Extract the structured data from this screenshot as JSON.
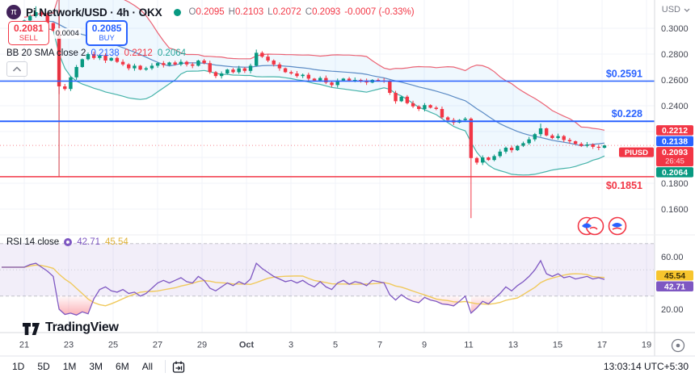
{
  "header": {
    "symbol_title": "Pi Network/USD · 4h · OKX",
    "ohlc": {
      "o_label": "O",
      "o": "0.2095",
      "h_label": "H",
      "h": "0.2103",
      "l_label": "L",
      "l": "0.2072",
      "c_label": "C",
      "c": "0.2093",
      "change": "-0.0007 (-0.33%)"
    }
  },
  "trade": {
    "sell_price": "0.2081",
    "sell_label": "SELL",
    "spread": "0.0004",
    "buy_price": "0.2085",
    "buy_label": "BUY"
  },
  "indicators": {
    "bb": {
      "label": "BB 20 SMA close 2",
      "basis": "0.2138",
      "upper": "0.2212",
      "lower": "0.2064"
    },
    "rsi": {
      "label": "RSI 14 close",
      "value": "42.71",
      "ma_value": "45.54"
    }
  },
  "price_axis": {
    "currency": "USD"
  },
  "watermark": {
    "text": "TradingView"
  },
  "toolbar": {
    "ranges": [
      "1D",
      "5D",
      "1M",
      "3M",
      "6M",
      "All"
    ]
  },
  "footer": {
    "clock": "13:03:14 UTC+5:30"
  },
  "chart_data": {
    "type": "candlestick_with_rsi",
    "symbol_tag": "PIUSD",
    "last_price": 0.2093,
    "bar_countdown": "26:45",
    "price_gridlines": [
      0.3,
      0.28,
      0.26,
      0.24,
      0.22,
      0.2,
      0.18,
      0.16
    ],
    "price_ticks": [
      {
        "label": "0.3000",
        "value": 0.3
      },
      {
        "label": "0.2800",
        "value": 0.28
      },
      {
        "label": "0.2600",
        "value": 0.26
      },
      {
        "label": "0.2400",
        "value": 0.24
      },
      {
        "label": "0.1800",
        "value": 0.18
      },
      {
        "label": "0.1600",
        "value": 0.16
      }
    ],
    "time_ticks": [
      "21",
      "23",
      "25",
      "27",
      "29",
      "Oct",
      "3",
      "5",
      "7",
      "9",
      "11",
      "13",
      "15",
      "17",
      "19"
    ],
    "bold_time_tick": "Oct",
    "rsi_ticks": [
      {
        "label": "60.00",
        "value": 60
      },
      {
        "label": "20.00",
        "value": 20
      }
    ],
    "rsi_levels": {
      "upper": 70,
      "middle": 50,
      "lower": 30
    },
    "rsi_badges": [
      {
        "label": "45.54",
        "value": 45.54,
        "bg": "#f7c52d",
        "fg": "#3d3108"
      },
      {
        "label": "42.71",
        "value": 42.71,
        "bg": "#7e57c2",
        "fg": "#ffffff"
      }
    ],
    "price_badges": [
      {
        "label": "0.2212",
        "value": 0.2212,
        "bg": "#f23645"
      },
      {
        "label": "0.2138",
        "value": 0.2138,
        "bg": "#2962ff"
      },
      {
        "label": "0.2093",
        "value": 0.2093,
        "bg": "#f23645",
        "tag": "PIUSD",
        "sub": "26:45"
      },
      {
        "label": "0.2064",
        "value": 0.2064,
        "bg": "#089981"
      }
    ],
    "levels": [
      {
        "label": "$0.2591",
        "price": 0.2591,
        "color": "#2962ff",
        "width": 1.5,
        "label_dy": -5
      },
      {
        "label": "$0.228",
        "price": 0.228,
        "color": "#2962ff",
        "width": 2,
        "label_dy": -5
      },
      {
        "label": "$0.1851",
        "price": 0.1851,
        "color": "#f23645",
        "width": 1.5,
        "label_dy": 15
      }
    ],
    "vertical_line_index": 6,
    "bb": {
      "window": 20,
      "mult": 2
    },
    "rsi_ma_window": 9,
    "candles": {
      "warmup_closes": [
        0.298,
        0.3,
        0.302,
        0.299,
        0.301,
        0.303,
        0.3,
        0.302,
        0.305,
        0.303,
        0.306,
        0.304,
        0.307,
        0.305,
        0.303,
        0.306,
        0.308,
        0.305,
        0.304,
        0.305
      ],
      "closes": [
        0.306,
        0.3095,
        0.3125,
        0.3105,
        0.304,
        0.298,
        0.255,
        0.253,
        0.262,
        0.27,
        0.276,
        0.28,
        0.277,
        0.279,
        0.275,
        0.277,
        0.274,
        0.272,
        0.269,
        0.271,
        0.268,
        0.269,
        0.271,
        0.273,
        0.2715,
        0.2735,
        0.272,
        0.274,
        0.272,
        0.271,
        0.275,
        0.273,
        0.266,
        0.263,
        0.265,
        0.268,
        0.266,
        0.269,
        0.267,
        0.271,
        0.281,
        0.278,
        0.275,
        0.272,
        0.269,
        0.266,
        0.265,
        0.263,
        0.264,
        0.261,
        0.2595,
        0.2615,
        0.258,
        0.256,
        0.2595,
        0.261,
        0.2595,
        0.26,
        0.2595,
        0.258,
        0.26,
        0.2595,
        0.259,
        0.25,
        0.2435,
        0.247,
        0.242,
        0.2395,
        0.2375,
        0.2405,
        0.2385,
        0.2375,
        0.231,
        0.229,
        0.227,
        0.229,
        0.23,
        0.1995,
        0.196,
        0.2,
        0.198,
        0.201,
        0.2045,
        0.2075,
        0.2056,
        0.209,
        0.211,
        0.214,
        0.218,
        0.2225,
        0.217,
        0.215,
        0.2165,
        0.2135,
        0.2125,
        0.2105,
        0.209,
        0.21,
        0.2082,
        0.2075,
        0.2093
      ],
      "wick_overrides": {
        "2": {
          "h": 0.317
        },
        "6": {
          "h": 0.315,
          "l": 0.249
        },
        "40": {
          "h": 0.2835
        },
        "77": {
          "h": 0.231,
          "l": 0.153
        },
        "89": {
          "h": 0.2262
        }
      }
    },
    "rsi_series": [
      52,
      54,
      55,
      52,
      49,
      45,
      20,
      16,
      17,
      15.5,
      18,
      16.5,
      28,
      35,
      37,
      34,
      33,
      35,
      32,
      33,
      30,
      32,
      36,
      40,
      42,
      40,
      42,
      44,
      41,
      40,
      45,
      42,
      36,
      34,
      37,
      40,
      38,
      41,
      39,
      43,
      55,
      51,
      48,
      45,
      43,
      41,
      42,
      40,
      42,
      39,
      37,
      41,
      37,
      35,
      40,
      42,
      39,
      41,
      40,
      38,
      42,
      41,
      40,
      31,
      27,
      31,
      28,
      26,
      25,
      29,
      27,
      26,
      24,
      23.5,
      22.5,
      26,
      30,
      17,
      21,
      26,
      24,
      28,
      32,
      37,
      34,
      38,
      41,
      45,
      50,
      57,
      47,
      45,
      47,
      44,
      45,
      43,
      44,
      45,
      43,
      44,
      42.71
    ],
    "colors": {
      "up": "#089981",
      "down": "#f23645",
      "bb_upper": "#e9485c",
      "bb_basis": "#4a7ebf",
      "bb_lower": "#26a69a",
      "bb_fill": "rgba(33,150,243,0.07)",
      "grid": "#f0f3fa",
      "rsi_line": "#7e57c2",
      "rsi_ma": "#f0c95c",
      "rsi_band": "rgba(126,87,194,0.10)",
      "last_price_line": "#f23645"
    }
  }
}
